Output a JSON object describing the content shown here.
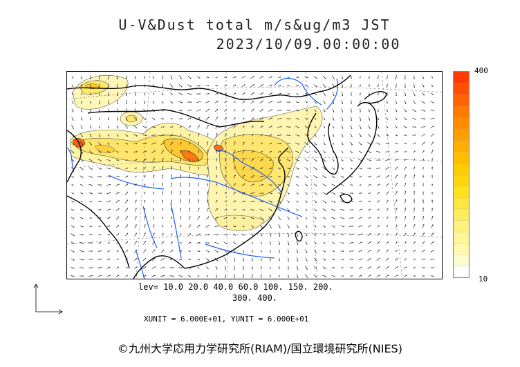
{
  "title": {
    "line1": "U-V&Dust total m/s&ug/m3 JST",
    "line2": "2023/10/09.00:00:00"
  },
  "colorbar": {
    "max_label": "400",
    "min_label": "10",
    "colors": [
      "#ffffff",
      "#fffccc",
      "#fff9b0",
      "#fff59a",
      "#fff27f",
      "#ffed60",
      "#ffe640",
      "#ffe020",
      "#ffd60e",
      "#ffcc00",
      "#ffbe00",
      "#ffae00",
      "#ff9e00",
      "#ff8c00",
      "#ff7a00",
      "#ff6400",
      "#ff5000",
      "#ff3a00"
    ]
  },
  "levels": {
    "line1": "lev= 10.0 20.0 40.0 60.0 100. 150. 200.",
    "line2": "300. 400."
  },
  "units": "XUNIT = 6.000E+01, YUNIT = 6.000E+01",
  "copyright": "©九州大学応用力学研究所(RIAM)/国立環境研究所(NIES)"
}
